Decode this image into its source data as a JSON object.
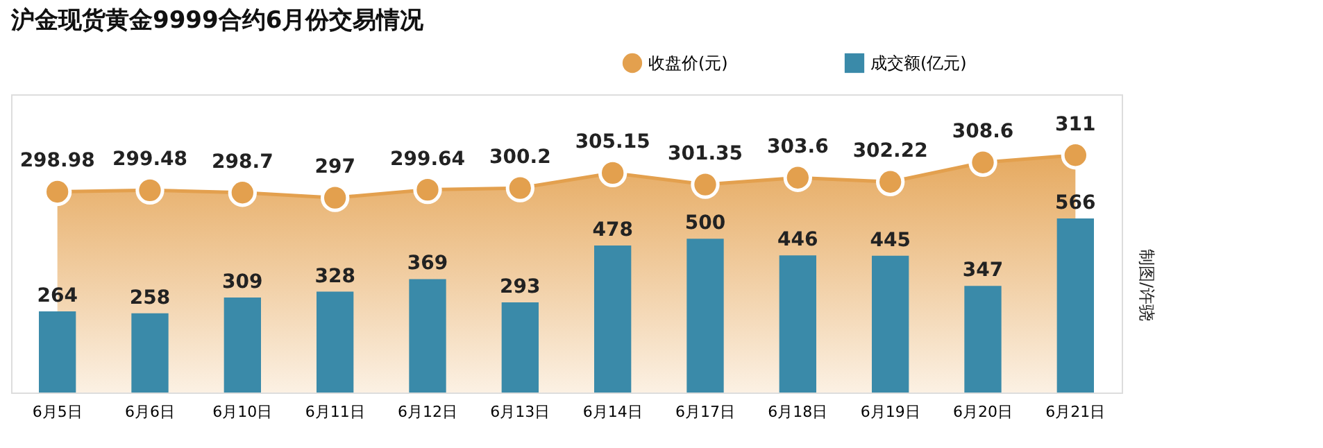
{
  "chart_data": {
    "type": "bar",
    "title": "沪金现货黄金9999合约6月份交易情况",
    "categories": [
      "6月5日",
      "6月6日",
      "6月10日",
      "6月11日",
      "6月12日",
      "6月13日",
      "6月14日",
      "6月17日",
      "6月18日",
      "6月19日",
      "6月20日",
      "6月21日"
    ],
    "series": [
      {
        "name": "成交额(亿元)",
        "color": "#3a8aa9",
        "values": [
          264,
          258,
          309,
          328,
          369,
          293,
          478,
          500,
          446,
          445,
          347,
          566
        ]
      },
      {
        "name": "收盘价(元)",
        "type": "area",
        "axis": "y2",
        "color": "#e3a04e",
        "marker": "circle",
        "values": [
          298.98,
          299.48,
          298.7,
          297,
          299.64,
          300.2,
          305.15,
          301.35,
          303.6,
          302.22,
          308.6,
          311
        ]
      }
    ],
    "ylim": [
      0,
      970
    ],
    "y2lim": [
      233,
      331
    ],
    "data_labels": true,
    "tick_labels": "x",
    "grid": false,
    "legend": "top",
    "annotations": [
      "制图/许骁"
    ]
  }
}
